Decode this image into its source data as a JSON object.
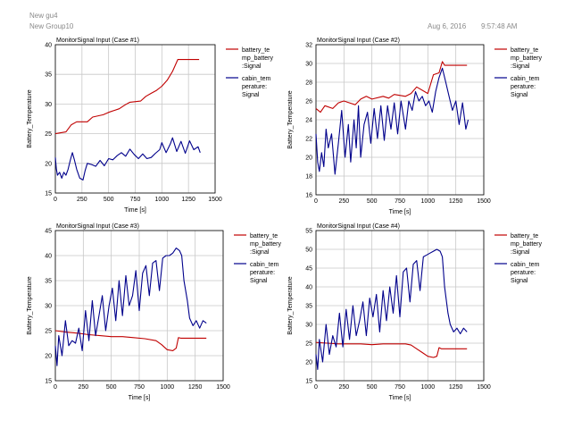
{
  "header": {
    "line1": "New gu4",
    "line2": "New Group10",
    "date": "Aug 6, 2016",
    "time": "9:57:48 AM"
  },
  "colors": {
    "battery": "#c00000",
    "cabin": "#00008b",
    "grid": "#c8c8c8"
  },
  "chart_data": [
    {
      "type": "line",
      "title": "MonitorSignal Input (Case #1)",
      "xlabel": "Time [s]",
      "ylabel": "Battery_Temperature",
      "xlim": [
        0,
        1500
      ],
      "ylim": [
        15,
        40
      ],
      "xticks": [
        0,
        250,
        500,
        750,
        1000,
        1250,
        1500
      ],
      "yticks": [
        15,
        20,
        25,
        30,
        35,
        40
      ],
      "grid": true,
      "legend_position": "right",
      "series": [
        {
          "name": "battery_temp_battery:Signal",
          "legend_lines": [
            "battery_te",
            "mp_battery",
            ":Signal"
          ],
          "color": "#c00000",
          "x": [
            0,
            100,
            150,
            200,
            300,
            350,
            450,
            500,
            600,
            650,
            700,
            800,
            850,
            900,
            950,
            1000,
            1050,
            1100,
            1150,
            1350
          ],
          "y": [
            25,
            25.3,
            26.5,
            27,
            27,
            27.8,
            28.2,
            28.6,
            29.2,
            29.8,
            30.3,
            30.5,
            31.3,
            31.8,
            32.3,
            33,
            34,
            35.5,
            37.5,
            37.5
          ]
        },
        {
          "name": "cabin_temperature:Signal",
          "legend_lines": [
            "cabin_tem",
            "perature:",
            "Signal"
          ],
          "color": "#00008b",
          "x": [
            0,
            10,
            20,
            40,
            60,
            80,
            100,
            120,
            140,
            160,
            180,
            200,
            230,
            260,
            280,
            300,
            340,
            380,
            420,
            460,
            500,
            540,
            580,
            620,
            660,
            700,
            740,
            780,
            820,
            860,
            900,
            940,
            980,
            1000,
            1040,
            1080,
            1100,
            1140,
            1180,
            1220,
            1260,
            1300,
            1340,
            1360
          ],
          "y": [
            21,
            19,
            18,
            18.5,
            17.5,
            18.5,
            18,
            19,
            20.5,
            21.8,
            20.5,
            19,
            17.5,
            17.2,
            18.8,
            20,
            19.8,
            19.5,
            20.5,
            19.6,
            20.8,
            20.6,
            21.3,
            21.8,
            21.2,
            22.4,
            21.5,
            20.8,
            21.6,
            20.8,
            21,
            21.7,
            22.3,
            23.5,
            21.8,
            23.3,
            24.3,
            22,
            23.7,
            21.7,
            23.8,
            22.3,
            22.8,
            21.8
          ]
        }
      ]
    },
    {
      "type": "line",
      "title": "MonitorSignal Input (Case #2)",
      "xlabel": "Time [s]",
      "ylabel": "Battery_Temperature",
      "xlim": [
        0,
        1500
      ],
      "ylim": [
        16,
        32
      ],
      "xticks": [
        0,
        250,
        500,
        750,
        1000,
        1250,
        1500
      ],
      "yticks": [
        16,
        18,
        20,
        22,
        24,
        26,
        28,
        30,
        32
      ],
      "grid": true,
      "legend_position": "right",
      "series": [
        {
          "name": "battery_temp_battery:Signal",
          "legend_lines": [
            "battery_te",
            "mp_battery",
            ":Signal"
          ],
          "color": "#c00000",
          "x": [
            0,
            40,
            80,
            150,
            200,
            250,
            300,
            350,
            400,
            450,
            500,
            600,
            650,
            700,
            800,
            850,
            900,
            1000,
            1050,
            1100,
            1130,
            1150,
            1200,
            1350
          ],
          "y": [
            25.2,
            24.8,
            25.5,
            25.2,
            25.8,
            26,
            25.8,
            25.6,
            26.2,
            26.5,
            26.2,
            26.5,
            26.3,
            26.7,
            26.5,
            26.8,
            27.5,
            26.8,
            28.8,
            29,
            30.2,
            29.8,
            29.8,
            29.8
          ]
        },
        {
          "name": "cabin_temperature:Signal",
          "legend_lines": [
            "cabin_tem",
            "perature:",
            "Signal"
          ],
          "color": "#00008b",
          "x": [
            0,
            15,
            30,
            50,
            70,
            90,
            110,
            140,
            170,
            200,
            230,
            260,
            290,
            310,
            340,
            360,
            380,
            400,
            430,
            460,
            490,
            520,
            550,
            580,
            610,
            640,
            670,
            700,
            730,
            760,
            800,
            830,
            860,
            890,
            920,
            950,
            980,
            1010,
            1040,
            1070,
            1100,
            1130,
            1160,
            1190,
            1220,
            1250,
            1280,
            1310,
            1340,
            1360
          ],
          "y": [
            22.5,
            19.5,
            18.5,
            20.5,
            19,
            23,
            21,
            22.5,
            18.2,
            21.5,
            25,
            20,
            23.5,
            19.5,
            24,
            21,
            25.5,
            20,
            23.5,
            24.8,
            21.5,
            25.2,
            22,
            25.5,
            21.8,
            25.5,
            23,
            25.8,
            22.5,
            26,
            23,
            26,
            25,
            27,
            26,
            26.5,
            25.5,
            26,
            24.8,
            27,
            28.5,
            29.5,
            28,
            26.5,
            25,
            26,
            23.5,
            25.8,
            23,
            24
          ]
        }
      ]
    },
    {
      "type": "line",
      "title": "MonitorSignal Input (Case #3)",
      "xlabel": "Time [s]",
      "ylabel": "Battery_Temperature",
      "xlim": [
        0,
        1500
      ],
      "ylim": [
        15,
        45
      ],
      "xticks": [
        0,
        250,
        500,
        750,
        1000,
        1250,
        1500
      ],
      "yticks": [
        15,
        20,
        25,
        30,
        35,
        40,
        45
      ],
      "grid": true,
      "legend_position": "right",
      "series": [
        {
          "name": "battery_temp_battery:Signal",
          "legend_lines": [
            "battery_te",
            "mp_battery",
            ":Signal"
          ],
          "color": "#c00000",
          "x": [
            0,
            100,
            200,
            300,
            400,
            500,
            600,
            700,
            800,
            900,
            950,
            1000,
            1050,
            1080,
            1100,
            1120,
            1350
          ],
          "y": [
            25,
            24.7,
            24.5,
            24.2,
            24,
            23.8,
            23.8,
            23.6,
            23.4,
            23,
            22.2,
            21.2,
            21,
            21.5,
            23.6,
            23.5,
            23.5
          ]
        },
        {
          "name": "cabin_temperature:Signal",
          "legend_lines": [
            "cabin_tem",
            "perature:",
            "Signal"
          ],
          "color": "#00008b",
          "x": [
            0,
            15,
            30,
            60,
            90,
            120,
            150,
            180,
            210,
            240,
            270,
            300,
            330,
            360,
            390,
            420,
            450,
            480,
            510,
            540,
            570,
            600,
            630,
            660,
            690,
            720,
            750,
            780,
            810,
            840,
            870,
            900,
            930,
            960,
            990,
            1020,
            1050,
            1080,
            1110,
            1130,
            1150,
            1180,
            1200,
            1230,
            1260,
            1290,
            1320,
            1350
          ],
          "y": [
            22,
            18,
            24,
            20,
            27,
            22,
            23,
            22.5,
            25.5,
            21,
            29,
            23,
            31,
            24,
            28,
            32,
            25,
            30,
            33.5,
            27,
            35,
            28,
            36,
            30,
            32,
            37,
            29,
            36.5,
            38,
            32,
            38.5,
            39,
            33,
            39.5,
            40,
            40,
            40.5,
            41.5,
            41,
            40,
            35,
            31,
            27.5,
            26,
            27,
            25.5,
            27,
            26.5
          ]
        }
      ]
    },
    {
      "type": "line",
      "title": "MonitorSignal Input (Case #4)",
      "xlabel": "Time [s]",
      "ylabel": "Battery_Temperature",
      "xlim": [
        0,
        1500
      ],
      "ylim": [
        15,
        55
      ],
      "xticks": [
        0,
        250,
        500,
        750,
        1000,
        1250,
        1500
      ],
      "yticks": [
        15,
        20,
        25,
        30,
        35,
        40,
        45,
        50,
        55
      ],
      "grid": true,
      "legend_position": "right",
      "series": [
        {
          "name": "battery_temp_battery:Signal",
          "legend_lines": [
            "battery_te",
            "mp_battery",
            ":Signal"
          ],
          "color": "#c00000",
          "x": [
            0,
            100,
            200,
            300,
            400,
            500,
            600,
            700,
            800,
            850,
            900,
            950,
            1000,
            1050,
            1080,
            1100,
            1120,
            1350
          ],
          "y": [
            25.2,
            25,
            24.8,
            24.8,
            24.8,
            24.6,
            24.8,
            24.8,
            24.8,
            24.5,
            23.5,
            22.5,
            21.5,
            21.2,
            21.5,
            23.8,
            23.5,
            23.5
          ]
        },
        {
          "name": "cabin_temperature:Signal",
          "legend_lines": [
            "cabin_tem",
            "perature:",
            "Signal"
          ],
          "color": "#00008b",
          "x": [
            0,
            15,
            30,
            60,
            90,
            120,
            150,
            180,
            210,
            240,
            270,
            300,
            330,
            360,
            390,
            420,
            450,
            480,
            510,
            540,
            570,
            600,
            630,
            660,
            690,
            720,
            750,
            780,
            810,
            840,
            870,
            900,
            930,
            960,
            990,
            1020,
            1050,
            1080,
            1110,
            1130,
            1150,
            1180,
            1200,
            1230,
            1260,
            1290,
            1320,
            1350
          ],
          "y": [
            22,
            18,
            26,
            20,
            30,
            22,
            27,
            24,
            33,
            24,
            34,
            26,
            35,
            27,
            31,
            36,
            27,
            37,
            32,
            38,
            28,
            39,
            31,
            40,
            33,
            43,
            32,
            44,
            45,
            36,
            46,
            47,
            39,
            48,
            48.5,
            49,
            49.5,
            50,
            49.5,
            48,
            40,
            33,
            30,
            28,
            29,
            27.5,
            29,
            28
          ]
        }
      ]
    }
  ]
}
